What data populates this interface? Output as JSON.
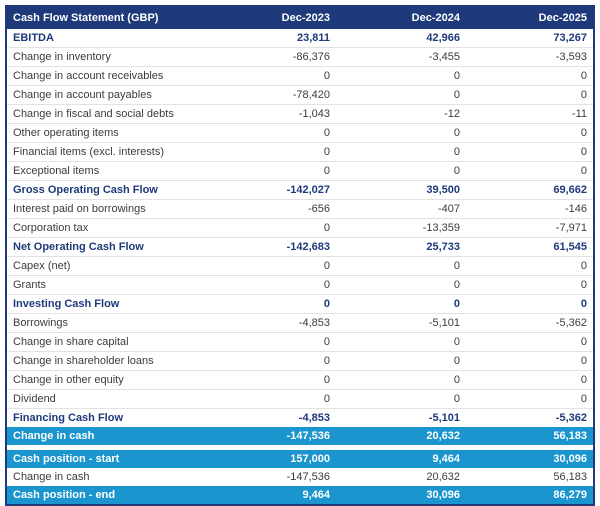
{
  "table": {
    "title": "Cash Flow Statement (GBP)",
    "columns": [
      "Dec-2023",
      "Dec-2024",
      "Dec-2025"
    ],
    "rows": [
      {
        "label": "EBITDA",
        "values": [
          "23,811",
          "42,966",
          "73,267"
        ],
        "type": "section"
      },
      {
        "label": "Change in inventory",
        "values": [
          "-86,376",
          "-3,455",
          "-3,593"
        ],
        "type": "normal"
      },
      {
        "label": "Change in account receivables",
        "values": [
          "0",
          "0",
          "0"
        ],
        "type": "normal"
      },
      {
        "label": "Change in account payables",
        "values": [
          "-78,420",
          "0",
          "0"
        ],
        "type": "normal"
      },
      {
        "label": "Change in fiscal and social debts",
        "values": [
          "-1,043",
          "-12",
          "-11"
        ],
        "type": "normal"
      },
      {
        "label": "Other operating items",
        "values": [
          "0",
          "0",
          "0"
        ],
        "type": "normal"
      },
      {
        "label": "Financial items (excl. interests)",
        "values": [
          "0",
          "0",
          "0"
        ],
        "type": "normal"
      },
      {
        "label": "Exceptional items",
        "values": [
          "0",
          "0",
          "0"
        ],
        "type": "normal"
      },
      {
        "label": "Gross Operating Cash Flow",
        "values": [
          "-142,027",
          "39,500",
          "69,662"
        ],
        "type": "section"
      },
      {
        "label": "Interest paid on borrowings",
        "values": [
          "-656",
          "-407",
          "-146"
        ],
        "type": "normal"
      },
      {
        "label": "Corporation tax",
        "values": [
          "0",
          "-13,359",
          "-7,971"
        ],
        "type": "normal"
      },
      {
        "label": "Net Operating Cash Flow",
        "values": [
          "-142,683",
          "25,733",
          "61,545"
        ],
        "type": "section"
      },
      {
        "label": "Capex (net)",
        "values": [
          "0",
          "0",
          "0"
        ],
        "type": "normal"
      },
      {
        "label": "Grants",
        "values": [
          "0",
          "0",
          "0"
        ],
        "type": "normal"
      },
      {
        "label": "Investing Cash Flow",
        "values": [
          "0",
          "0",
          "0"
        ],
        "type": "section"
      },
      {
        "label": "Borrowings",
        "values": [
          "-4,853",
          "-5,101",
          "-5,362"
        ],
        "type": "normal"
      },
      {
        "label": "Change in share capital",
        "values": [
          "0",
          "0",
          "0"
        ],
        "type": "normal"
      },
      {
        "label": "Change in shareholder loans",
        "values": [
          "0",
          "0",
          "0"
        ],
        "type": "normal"
      },
      {
        "label": "Change in other equity",
        "values": [
          "0",
          "0",
          "0"
        ],
        "type": "normal"
      },
      {
        "label": "Dividend",
        "values": [
          "0",
          "0",
          "0"
        ],
        "type": "normal"
      },
      {
        "label": "Financing Cash Flow",
        "values": [
          "-4,853",
          "-5,101",
          "-5,362"
        ],
        "type": "section"
      },
      {
        "label": "Change in cash",
        "values": [
          "-147,536",
          "20,632",
          "56,183"
        ],
        "type": "highlight"
      }
    ],
    "summary_rows": [
      {
        "label": "Cash position - start",
        "values": [
          "157,000",
          "9,464",
          "30,096"
        ],
        "type": "highlight"
      },
      {
        "label": "Change in cash",
        "values": [
          "-147,536",
          "20,632",
          "56,183"
        ],
        "type": "normal"
      },
      {
        "label": "Cash position - end",
        "values": [
          "9,464",
          "30,096",
          "86,279"
        ],
        "type": "highlight"
      }
    ]
  },
  "colors": {
    "header_bg": "#1e3a7b",
    "section_text": "#1e3a7b",
    "highlight_bg": "#1b95cd",
    "body_text": "#3c3c3c",
    "row_divider": "#e2e2e2"
  }
}
